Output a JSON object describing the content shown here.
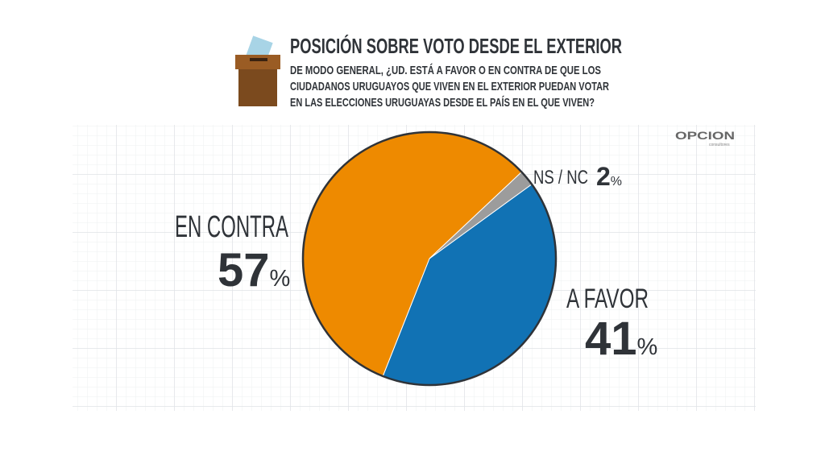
{
  "header": {
    "title": "POSICIÓN SOBRE VOTO DESDE EL EXTERIOR",
    "subtitle_lines": [
      "DE MODO GENERAL, ¿UD. ESTÁ A FAVOR O EN CONTRA DE QUE LOS",
      "CIUDADANOS URUGUAYOS QUE VIVEN EN EL EXTERIOR PUEDAN VOTAR",
      "EN LAS ELECCIONES URUGUAYAS DESDE EL PAÍS EN EL QUE VIVEN?"
    ]
  },
  "logo": {
    "name": "OPCION",
    "tagline": "consultores"
  },
  "chart_data": {
    "type": "pie",
    "categories": [
      "A FAVOR",
      "EN CONTRA",
      "NS / NC"
    ],
    "values": [
      41,
      57,
      2
    ],
    "value_labels": [
      "41%",
      "57%",
      "2%"
    ],
    "colors": [
      "#1172b4",
      "#ee8a00",
      "#9c9c9c"
    ]
  }
}
